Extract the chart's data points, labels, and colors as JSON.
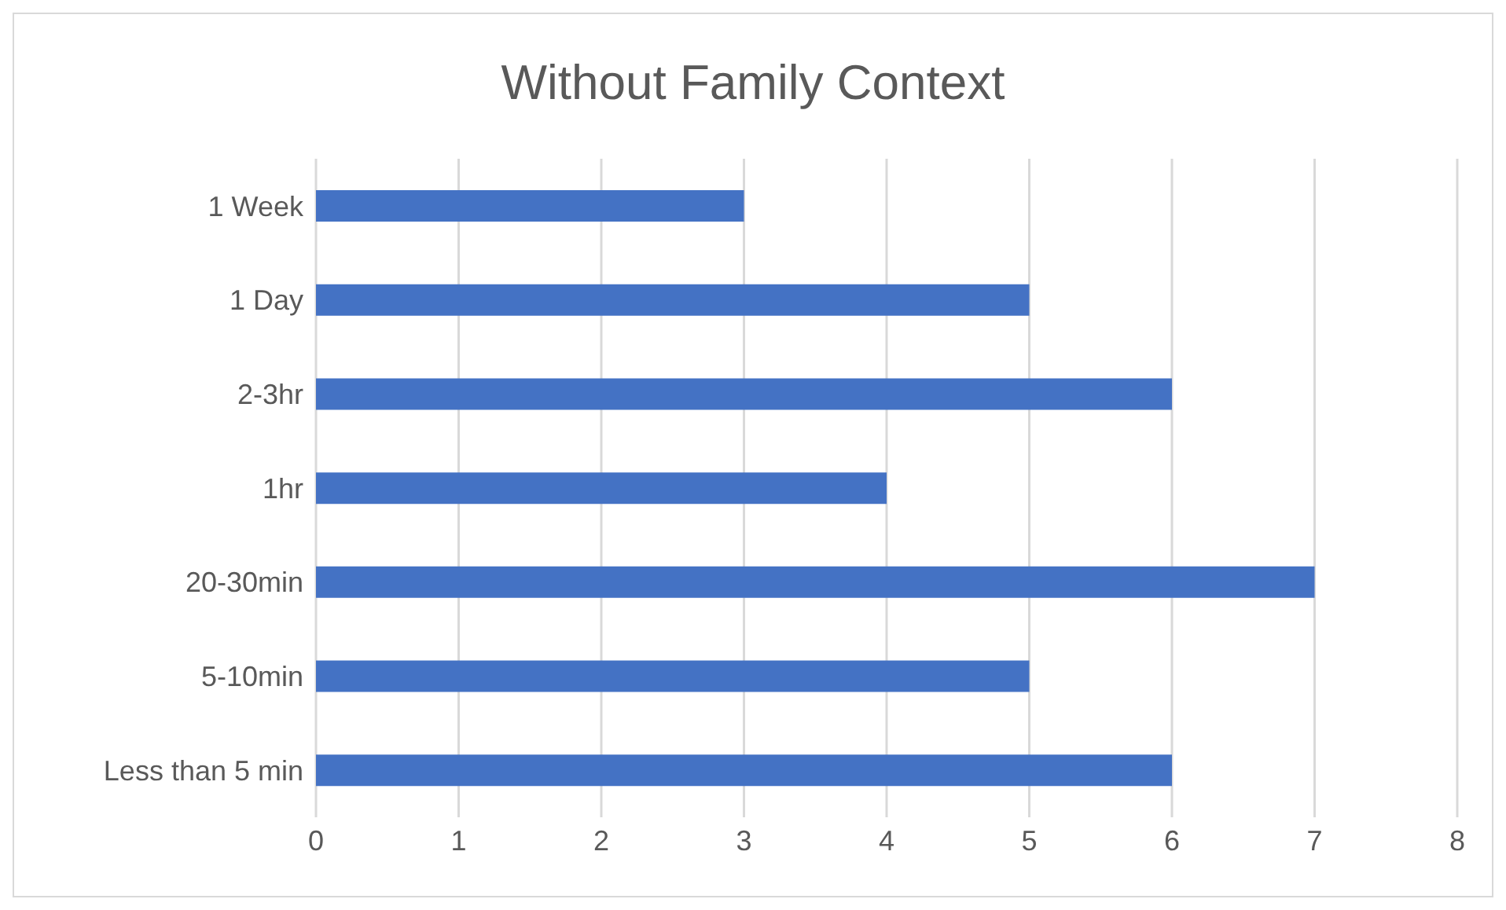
{
  "chart_data": {
    "type": "bar",
    "title": "Without Family Context",
    "orientation": "horizontal",
    "categories": [
      "1 Week",
      "1 Day",
      "2-3hr",
      "1hr",
      "20-30min",
      "5-10min",
      "Less than 5 min"
    ],
    "values": [
      3,
      5,
      6,
      4,
      7,
      5,
      6
    ],
    "color": "#4472c4",
    "xlim": [
      0,
      8
    ],
    "xticks": [
      0,
      1,
      2,
      3,
      4,
      5,
      6,
      7,
      8
    ],
    "grid": "x",
    "legend": false
  }
}
